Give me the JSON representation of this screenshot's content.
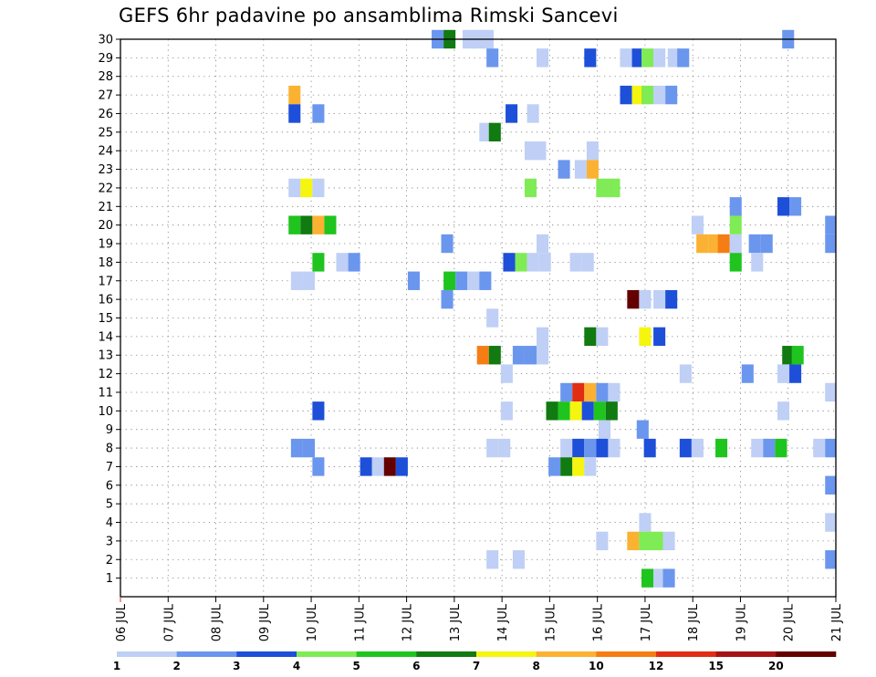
{
  "title": "GEFS 6hr padavine po ansamblima Rimski Sancevi",
  "chart_data": {
    "type": "heatmap",
    "title": "GEFS 6hr padavine po ansamblima Rimski Sancevi",
    "x_tick_labels": [
      "06 JUL",
      "07 JUL",
      "08 JUL",
      "09 JUL",
      "10 JUL",
      "11 JUL",
      "12 JUL",
      "13 JUL",
      "14 JUL",
      "15 JUL",
      "16 JUL",
      "17 JUL",
      "18 JUL",
      "19 JUL",
      "20 JUL",
      "21 JUL"
    ],
    "x_range_days": [
      0,
      15
    ],
    "y_tick_labels": [
      "1",
      "2",
      "3",
      "4",
      "5",
      "6",
      "7",
      "8",
      "9",
      "10",
      "11",
      "12",
      "13",
      "14",
      "15",
      "16",
      "17",
      "18",
      "19",
      "20",
      "21",
      "22",
      "23",
      "24",
      "25",
      "26",
      "27",
      "28",
      "29",
      "30"
    ],
    "y_range": [
      0,
      30
    ],
    "grid": true,
    "colorbar": {
      "thresholds": [
        "1",
        "2",
        "3",
        "4",
        "5",
        "6",
        "7",
        "8",
        "10",
        "12",
        "15",
        "20"
      ],
      "colors": [
        "#bfcff5",
        "#6b96ee",
        "#1e4fd8",
        "#7feb55",
        "#1fc41f",
        "#117a11",
        "#f5f50f",
        "#fbb232",
        "#f57d14",
        "#e12d14",
        "#a51414",
        "#640000"
      ]
    },
    "cells": [
      {
        "m": 30,
        "d": 6.65,
        "c": 1
      },
      {
        "m": 30,
        "d": 6.9,
        "c": 5
      },
      {
        "m": 30,
        "d": 7.3,
        "c": 0
      },
      {
        "m": 30,
        "d": 7.5,
        "c": 0
      },
      {
        "m": 30,
        "d": 7.7,
        "c": 0
      },
      {
        "m": 30,
        "d": 14.0,
        "c": 1
      },
      {
        "m": 29,
        "d": 7.8,
        "c": 1
      },
      {
        "m": 29,
        "d": 8.85,
        "c": 0
      },
      {
        "m": 29,
        "d": 9.85,
        "c": 2
      },
      {
        "m": 29,
        "d": 10.6,
        "c": 0
      },
      {
        "m": 29,
        "d": 10.85,
        "c": 2
      },
      {
        "m": 29,
        "d": 11.05,
        "c": 3
      },
      {
        "m": 29,
        "d": 11.3,
        "c": 0
      },
      {
        "m": 29,
        "d": 11.6,
        "c": 0
      },
      {
        "m": 29,
        "d": 11.8,
        "c": 1
      },
      {
        "m": 27,
        "d": 3.65,
        "c": 7
      },
      {
        "m": 27,
        "d": 10.6,
        "c": 2
      },
      {
        "m": 27,
        "d": 10.85,
        "c": 6
      },
      {
        "m": 27,
        "d": 11.05,
        "c": 3
      },
      {
        "m": 27,
        "d": 11.3,
        "c": 0
      },
      {
        "m": 27,
        "d": 11.55,
        "c": 1
      },
      {
        "m": 26,
        "d": 3.65,
        "c": 2
      },
      {
        "m": 26,
        "d": 4.15,
        "c": 1
      },
      {
        "m": 26,
        "d": 8.2,
        "c": 2
      },
      {
        "m": 26,
        "d": 8.65,
        "c": 0
      },
      {
        "m": 25,
        "d": 7.65,
        "c": 0
      },
      {
        "m": 25,
        "d": 7.85,
        "c": 5
      },
      {
        "m": 24,
        "d": 8.6,
        "c": 0
      },
      {
        "m": 24,
        "d": 8.8,
        "c": 0
      },
      {
        "m": 24,
        "d": 9.9,
        "c": 0
      },
      {
        "m": 23,
        "d": 9.3,
        "c": 1
      },
      {
        "m": 23,
        "d": 9.65,
        "c": 0
      },
      {
        "m": 23,
        "d": 9.9,
        "c": 7
      },
      {
        "m": 22,
        "d": 3.65,
        "c": 0
      },
      {
        "m": 22,
        "d": 3.9,
        "c": 6
      },
      {
        "m": 22,
        "d": 4.15,
        "c": 0
      },
      {
        "m": 22,
        "d": 8.6,
        "c": 3
      },
      {
        "m": 22,
        "d": 10.1,
        "c": 3
      },
      {
        "m": 22,
        "d": 10.35,
        "c": 3
      },
      {
        "m": 21,
        "d": 12.9,
        "c": 1
      },
      {
        "m": 21,
        "d": 13.9,
        "c": 2
      },
      {
        "m": 21,
        "d": 14.15,
        "c": 1
      },
      {
        "m": 20,
        "d": 3.65,
        "c": 4
      },
      {
        "m": 20,
        "d": 3.9,
        "c": 5
      },
      {
        "m": 20,
        "d": 4.15,
        "c": 7
      },
      {
        "m": 20,
        "d": 4.4,
        "c": 4
      },
      {
        "m": 20,
        "d": 12.1,
        "c": 0
      },
      {
        "m": 20,
        "d": 12.9,
        "c": 3
      },
      {
        "m": 20,
        "d": 14.9,
        "c": 1
      },
      {
        "m": 19,
        "d": 6.85,
        "c": 1
      },
      {
        "m": 19,
        "d": 8.85,
        "c": 0
      },
      {
        "m": 19,
        "d": 12.2,
        "c": 7
      },
      {
        "m": 19,
        "d": 12.45,
        "c": 7
      },
      {
        "m": 19,
        "d": 12.65,
        "c": 8
      },
      {
        "m": 19,
        "d": 12.9,
        "c": 0
      },
      {
        "m": 19,
        "d": 13.3,
        "c": 1
      },
      {
        "m": 19,
        "d": 13.55,
        "c": 1
      },
      {
        "m": 19,
        "d": 14.9,
        "c": 1
      },
      {
        "m": 18,
        "d": 4.15,
        "c": 4
      },
      {
        "m": 18,
        "d": 4.65,
        "c": 0
      },
      {
        "m": 18,
        "d": 4.9,
        "c": 1
      },
      {
        "m": 18,
        "d": 8.15,
        "c": 2
      },
      {
        "m": 18,
        "d": 8.4,
        "c": 3
      },
      {
        "m": 18,
        "d": 8.65,
        "c": 0
      },
      {
        "m": 18,
        "d": 8.9,
        "c": 0
      },
      {
        "m": 18,
        "d": 9.55,
        "c": 0
      },
      {
        "m": 18,
        "d": 9.8,
        "c": 0
      },
      {
        "m": 18,
        "d": 12.9,
        "c": 4
      },
      {
        "m": 18,
        "d": 13.35,
        "c": 0
      },
      {
        "m": 17,
        "d": 3.7,
        "c": 0
      },
      {
        "m": 17,
        "d": 3.95,
        "c": 0
      },
      {
        "m": 17,
        "d": 6.15,
        "c": 1
      },
      {
        "m": 17,
        "d": 6.9,
        "c": 4
      },
      {
        "m": 17,
        "d": 7.15,
        "c": 1
      },
      {
        "m": 17,
        "d": 7.4,
        "c": 0
      },
      {
        "m": 17,
        "d": 7.65,
        "c": 1
      },
      {
        "m": 16,
        "d": 6.85,
        "c": 1
      },
      {
        "m": 16,
        "d": 10.75,
        "c": 11
      },
      {
        "m": 16,
        "d": 11.0,
        "c": 0
      },
      {
        "m": 16,
        "d": 11.3,
        "c": 0
      },
      {
        "m": 16,
        "d": 11.55,
        "c": 2
      },
      {
        "m": 15,
        "d": 7.8,
        "c": 0
      },
      {
        "m": 14,
        "d": 9.85,
        "c": 5
      },
      {
        "m": 14,
        "d": 10.1,
        "c": 0
      },
      {
        "m": 14,
        "d": 11.0,
        "c": 6
      },
      {
        "m": 14,
        "d": 11.3,
        "c": 2
      },
      {
        "m": 14,
        "d": 8.85,
        "c": 0
      },
      {
        "m": 13,
        "d": 7.6,
        "c": 8
      },
      {
        "m": 13,
        "d": 7.85,
        "c": 5
      },
      {
        "m": 13,
        "d": 8.35,
        "c": 1
      },
      {
        "m": 13,
        "d": 8.6,
        "c": 1
      },
      {
        "m": 13,
        "d": 8.85,
        "c": 0
      },
      {
        "m": 13,
        "d": 14.0,
        "c": 5
      },
      {
        "m": 13,
        "d": 14.2,
        "c": 4
      },
      {
        "m": 12,
        "d": 8.1,
        "c": 0
      },
      {
        "m": 12,
        "d": 11.85,
        "c": 0
      },
      {
        "m": 12,
        "d": 13.15,
        "c": 1
      },
      {
        "m": 12,
        "d": 13.9,
        "c": 0
      },
      {
        "m": 12,
        "d": 14.15,
        "c": 2
      },
      {
        "m": 11,
        "d": 9.35,
        "c": 1
      },
      {
        "m": 11,
        "d": 9.6,
        "c": 9
      },
      {
        "m": 11,
        "d": 9.85,
        "c": 7
      },
      {
        "m": 11,
        "d": 10.1,
        "c": 1
      },
      {
        "m": 11,
        "d": 10.35,
        "c": 0
      },
      {
        "m": 11,
        "d": 14.9,
        "c": 0
      },
      {
        "m": 10,
        "d": 4.15,
        "c": 2
      },
      {
        "m": 10,
        "d": 8.1,
        "c": 0
      },
      {
        "m": 10,
        "d": 9.05,
        "c": 5
      },
      {
        "m": 10,
        "d": 9.3,
        "c": 4
      },
      {
        "m": 10,
        "d": 9.55,
        "c": 6
      },
      {
        "m": 10,
        "d": 9.8,
        "c": 2
      },
      {
        "m": 10,
        "d": 10.05,
        "c": 4
      },
      {
        "m": 10,
        "d": 10.3,
        "c": 5
      },
      {
        "m": 10,
        "d": 13.9,
        "c": 0
      },
      {
        "m": 9,
        "d": 10.15,
        "c": 0
      },
      {
        "m": 9,
        "d": 10.95,
        "c": 1
      },
      {
        "m": 8,
        "d": 3.7,
        "c": 1
      },
      {
        "m": 8,
        "d": 3.95,
        "c": 1
      },
      {
        "m": 8,
        "d": 7.8,
        "c": 0
      },
      {
        "m": 8,
        "d": 8.05,
        "c": 0
      },
      {
        "m": 8,
        "d": 9.35,
        "c": 0
      },
      {
        "m": 8,
        "d": 9.6,
        "c": 2
      },
      {
        "m": 8,
        "d": 9.85,
        "c": 1
      },
      {
        "m": 8,
        "d": 10.1,
        "c": 2
      },
      {
        "m": 8,
        "d": 10.35,
        "c": 0
      },
      {
        "m": 8,
        "d": 11.1,
        "c": 2
      },
      {
        "m": 8,
        "d": 11.85,
        "c": 2
      },
      {
        "m": 8,
        "d": 12.1,
        "c": 0
      },
      {
        "m": 8,
        "d": 12.6,
        "c": 4
      },
      {
        "m": 8,
        "d": 13.35,
        "c": 0
      },
      {
        "m": 8,
        "d": 13.6,
        "c": 1
      },
      {
        "m": 8,
        "d": 13.85,
        "c": 4
      },
      {
        "m": 8,
        "d": 14.65,
        "c": 0
      },
      {
        "m": 8,
        "d": 14.9,
        "c": 1
      },
      {
        "m": 7,
        "d": 4.15,
        "c": 1
      },
      {
        "m": 7,
        "d": 5.15,
        "c": 2
      },
      {
        "m": 7,
        "d": 5.4,
        "c": 0
      },
      {
        "m": 7,
        "d": 5.65,
        "c": 11
      },
      {
        "m": 7,
        "d": 5.9,
        "c": 2
      },
      {
        "m": 7,
        "d": 9.1,
        "c": 1
      },
      {
        "m": 7,
        "d": 9.35,
        "c": 5
      },
      {
        "m": 7,
        "d": 9.6,
        "c": 6
      },
      {
        "m": 7,
        "d": 9.85,
        "c": 0
      },
      {
        "m": 6,
        "d": 14.9,
        "c": 1
      },
      {
        "m": 4,
        "d": 11.0,
        "c": 0
      },
      {
        "m": 4,
        "d": 14.9,
        "c": 0
      },
      {
        "m": 3,
        "d": 10.1,
        "c": 0
      },
      {
        "m": 3,
        "d": 10.75,
        "c": 7
      },
      {
        "m": 3,
        "d": 11.0,
        "c": 3
      },
      {
        "m": 3,
        "d": 11.25,
        "c": 3
      },
      {
        "m": 3,
        "d": 11.5,
        "c": 0
      },
      {
        "m": 2,
        "d": 7.8,
        "c": 0
      },
      {
        "m": 2,
        "d": 8.35,
        "c": 0
      },
      {
        "m": 2,
        "d": 14.9,
        "c": 1
      },
      {
        "m": 1,
        "d": 11.05,
        "c": 4
      },
      {
        "m": 1,
        "d": 11.3,
        "c": 0
      },
      {
        "m": 1,
        "d": 11.5,
        "c": 1
      }
    ]
  }
}
